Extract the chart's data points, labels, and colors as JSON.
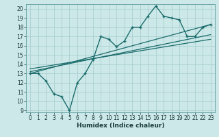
{
  "title": "",
  "xlabel": "Humidex (Indice chaleur)",
  "bg_color": "#cce8e8",
  "line_color": "#1a6b6b",
  "grid_color": "#aacfcf",
  "xlim": [
    -0.5,
    23.5
  ],
  "ylim": [
    8.8,
    20.5
  ],
  "yticks": [
    9,
    10,
    11,
    12,
    13,
    14,
    15,
    16,
    17,
    18,
    19,
    20
  ],
  "xticks": [
    0,
    1,
    2,
    3,
    4,
    5,
    6,
    7,
    8,
    9,
    10,
    11,
    12,
    13,
    14,
    15,
    16,
    17,
    18,
    19,
    20,
    21,
    22,
    23
  ],
  "line1_x": [
    0,
    1,
    2,
    3,
    4,
    5,
    6,
    7,
    8,
    9,
    10,
    11,
    12,
    13,
    14,
    15,
    16,
    17,
    18,
    19,
    20,
    21,
    22,
    23
  ],
  "line1_y": [
    13.0,
    13.0,
    12.2,
    10.8,
    10.5,
    9.0,
    12.0,
    13.0,
    14.5,
    17.0,
    16.7,
    15.9,
    16.5,
    18.0,
    18.0,
    19.2,
    20.3,
    19.2,
    19.0,
    18.8,
    17.0,
    17.0,
    18.0,
    18.3
  ],
  "line2_x": [
    0,
    23
  ],
  "line2_y": [
    13.0,
    18.3
  ],
  "line3_x": [
    0,
    23
  ],
  "line3_y": [
    13.2,
    17.2
  ],
  "line4_x": [
    0,
    23
  ],
  "line4_y": [
    13.5,
    16.7
  ]
}
